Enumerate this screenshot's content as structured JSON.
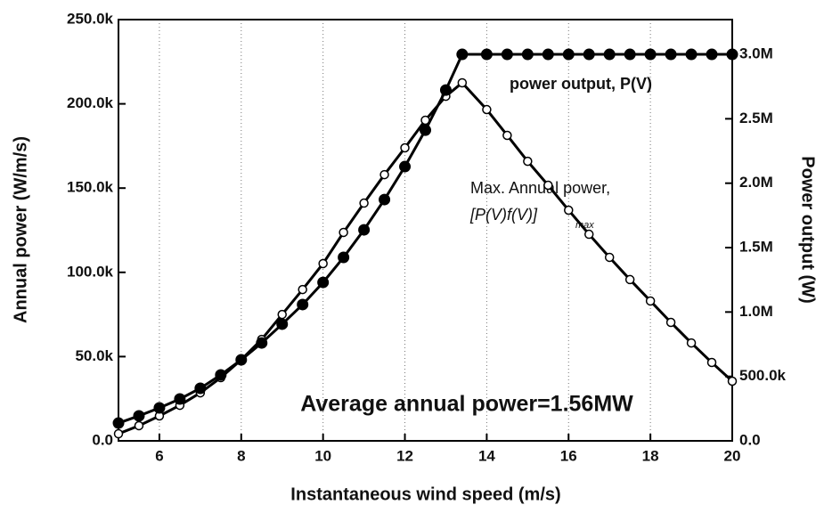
{
  "chart_data": {
    "type": "line",
    "x": [
      5,
      5.5,
      6,
      6.5,
      7,
      7.5,
      8,
      8.5,
      9,
      9.5,
      10,
      10.5,
      11,
      11.5,
      12,
      12.5,
      13,
      13.4,
      14,
      14.5,
      15,
      15.5,
      16,
      16.5,
      17,
      17.5,
      18,
      18.5,
      19,
      19.5,
      20
    ],
    "series": [
      {
        "name": "Annual power",
        "color": "#000000",
        "marker": "open",
        "values": [
          4200,
          9000,
          14800,
          21100,
          28500,
          37500,
          48100,
          60200,
          75000,
          89800,
          105200,
          123700,
          141100,
          158000,
          173900,
          190300,
          204500,
          212500,
          196600,
          181300,
          165900,
          151700,
          136900,
          122600,
          108900,
          95700,
          83000,
          70300,
          58100,
          46500,
          35400
        ]
      },
      {
        "name": "Power output",
        "color": "#000000",
        "marker": "filled",
        "axis": "y2",
        "values": [
          138000,
          194000,
          256000,
          325000,
          408000,
          512000,
          629000,
          760000,
          906000,
          1058000,
          1230000,
          1424000,
          1638000,
          1873000,
          2129000,
          2412000,
          2723000,
          3000000,
          3000000,
          3000000,
          3000000,
          3000000,
          3000000,
          3000000,
          3000000,
          3000000,
          3000000,
          3000000,
          3000000,
          3000000,
          3000000
        ]
      }
    ],
    "xlabel": "Instantaneous wind speed (m/s)",
    "ylabel": "Annual power (W/m/s)",
    "y2label": "Power output (W)",
    "annotations": [
      "power output, P(V)",
      "Max. Annual power,",
      "[P(V)f(V)]",
      "max",
      "Average annual power=1.56MW"
    ],
    "xlim": [
      5,
      20
    ],
    "xticks": [
      6,
      8,
      10,
      12,
      14,
      16,
      18,
      20
    ],
    "ylim": [
      0,
      250000
    ],
    "yticks": [
      {
        "value": 0,
        "label": "0.0"
      },
      {
        "value": 50000,
        "label": "50.0k"
      },
      {
        "value": 100000,
        "label": "100.0k"
      },
      {
        "value": 150000,
        "label": "150.0k"
      },
      {
        "value": 200000,
        "label": "200.0k"
      },
      {
        "value": 250000,
        "label": "250.0k"
      }
    ],
    "y2lim": [
      0,
      3270000
    ],
    "y2ticks": [
      {
        "value": 0,
        "label": "0.0"
      },
      {
        "value": 500000,
        "label": "500.0k"
      },
      {
        "value": 1000000,
        "label": "1.0M"
      },
      {
        "value": 1500000,
        "label": "1.5M"
      },
      {
        "value": 2000000,
        "label": "2.0M"
      },
      {
        "value": 2500000,
        "label": "2.5M"
      },
      {
        "value": 3000000,
        "label": "3.0M"
      }
    ],
    "grid": true
  }
}
